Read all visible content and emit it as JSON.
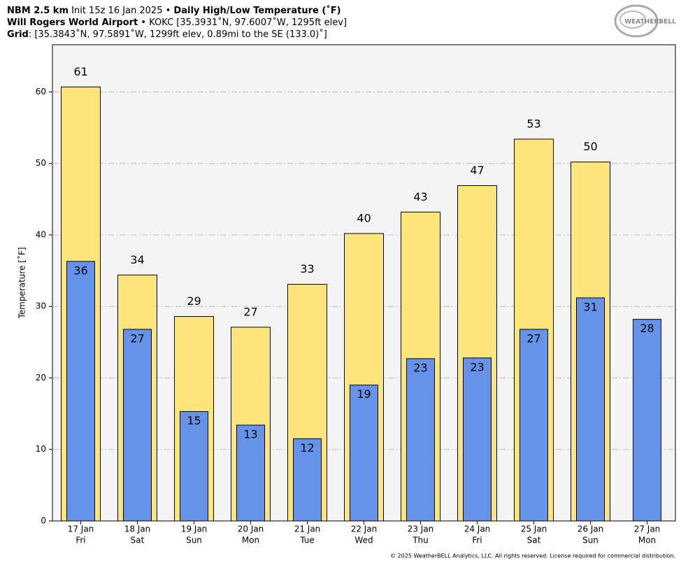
{
  "header": {
    "line1": [
      "NBM 2.5 km",
      " Init 15z 16 Jan 2025 • ",
      "Daily High/Low Temperature (˚F)"
    ],
    "line2": [
      "Will Rogers World Airport",
      " • KOKC [35.3931˚N, 97.6007˚W, 1295ft elev]"
    ],
    "line3": [
      "Grid",
      ": [35.3843˚N, 97.5891˚W, 1299ft elev, 0.89mi to the SE (133.0)˚]"
    ],
    "logo": "WEATHERBELL"
  },
  "footer": "© 2025 WeatherBELL Analytics, LLC. All rights reserved. License required for commercial distribution.",
  "chart_data": {
    "type": "bar",
    "ylabel": "Temperature [˚F]",
    "categories": [
      "17 Jan",
      "18 Jan",
      "19 Jan",
      "20 Jan",
      "21 Jan",
      "22 Jan",
      "23 Jan",
      "24 Jan",
      "25 Jan",
      "26 Jan",
      "27 Jan"
    ],
    "weekdays": [
      "Fri",
      "Sat",
      "Sun",
      "Mon",
      "Tue",
      "Wed",
      "Thu",
      "Fri",
      "Sat",
      "Sun",
      "Mon"
    ],
    "series": [
      {
        "name": "High",
        "color": "#ffe57c",
        "values": [
          60.7,
          34.4,
          28.6,
          27.1,
          33.1,
          40.2,
          43.2,
          46.9,
          53.4,
          50.2,
          null
        ],
        "value_labels": [
          "61",
          "34",
          "29",
          "27",
          "33",
          "40",
          "43",
          "47",
          "53",
          "50",
          null
        ]
      },
      {
        "name": "Low",
        "color": "#6693ea",
        "values": [
          36.3,
          26.8,
          15.3,
          13.4,
          11.5,
          19.0,
          22.7,
          22.8,
          26.8,
          31.2,
          28.2
        ],
        "value_labels": [
          "36",
          "27",
          "15",
          "13",
          "12",
          "19",
          "23",
          "23",
          "27",
          "31",
          "28"
        ]
      }
    ],
    "ylim": [
      0,
      66.6
    ],
    "yticks": [
      0,
      10,
      20,
      30,
      40,
      50,
      60
    ],
    "grid": true
  }
}
